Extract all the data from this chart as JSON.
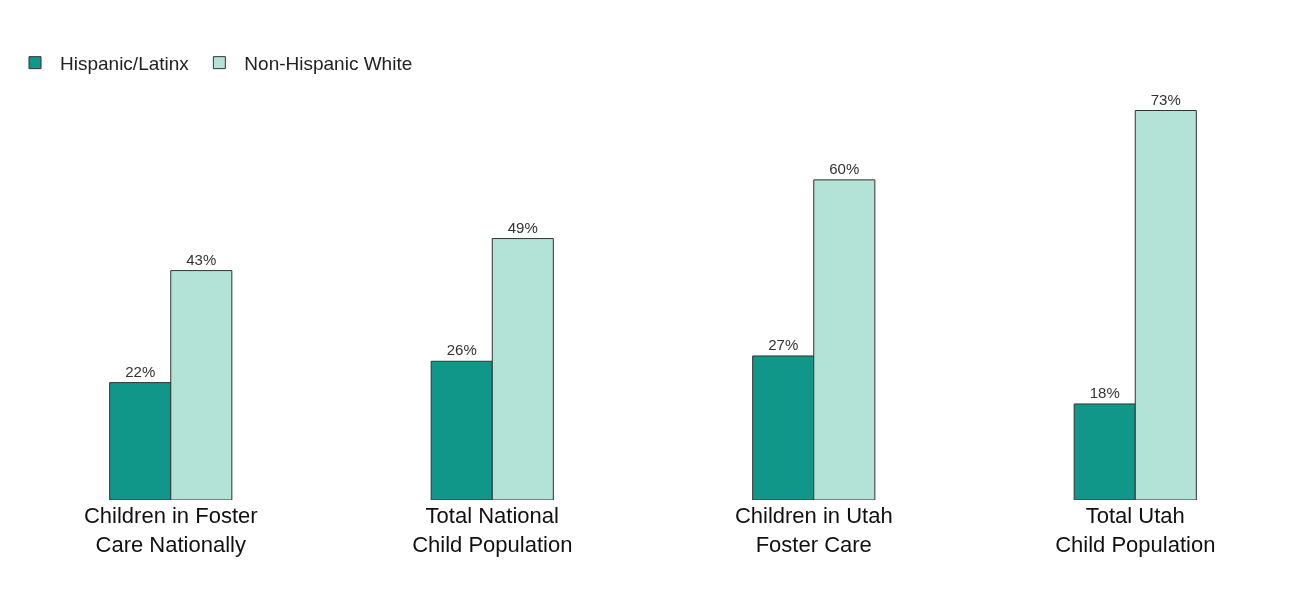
{
  "chart_data": {
    "type": "bar",
    "categories": [
      "Children in Foster\nCare Nationally",
      "Total National\nChild Population",
      "Children in Utah\nFoster Care",
      "Total Utah\nChild Population"
    ],
    "series": [
      {
        "name": "Hispanic/Latinx",
        "color": "#10978a",
        "values": [
          22,
          26,
          27,
          18
        ],
        "value_labels": [
          "22%",
          "26%",
          "27%",
          "18%"
        ]
      },
      {
        "name": "Non-Hispanic White",
        "color": "#b3e2d6",
        "values": [
          43,
          49,
          60,
          73
        ],
        "value_labels": [
          "43%",
          "49%",
          "60%",
          "73%"
        ]
      }
    ],
    "legend": "top left"
  }
}
